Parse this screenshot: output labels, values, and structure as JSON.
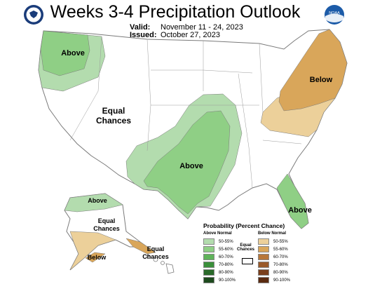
{
  "header": {
    "title": "Weeks 3-4 Precipitation Outlook",
    "valid_label": "Valid:",
    "valid_value": "November 11 - 24, 2023",
    "issued_label": "Issued:",
    "issued_value": "October 27, 2023"
  },
  "logos": {
    "left": "doc-seal-icon",
    "right": "noaa-logo-icon",
    "right_text": "NOAA"
  },
  "map_labels": {
    "northwest": "Above",
    "west_line1": "Equal",
    "west_line2": "Chances",
    "central": "Above",
    "northeast": "Below",
    "florida": "Above",
    "alaska_north": "Above",
    "alaska_mid_line1": "Equal",
    "alaska_mid_line2": "Chances",
    "alaska_south": "Below",
    "hawaii_line1": "Equal",
    "hawaii_line2": "Chances"
  },
  "legend": {
    "title": "Probability (Percent Chance)",
    "above_header": "Above Normal",
    "below_header": "Below Normal",
    "equal_line1": "Equal",
    "equal_line2": "Chances",
    "above": [
      {
        "label": "50-55%",
        "color": "#b3dcae"
      },
      {
        "label": "55-60%",
        "color": "#8fcf85"
      },
      {
        "label": "60-70%",
        "color": "#5fb35a"
      },
      {
        "label": "70-80%",
        "color": "#3a8f3a"
      },
      {
        "label": "80-90%",
        "color": "#2a6a2a"
      },
      {
        "label": "90-100%",
        "color": "#1d4a1d"
      }
    ],
    "below": [
      {
        "label": "50-55%",
        "color": "#ecd09a"
      },
      {
        "label": "55-60%",
        "color": "#d9a65a"
      },
      {
        "label": "60-70%",
        "color": "#b7773a"
      },
      {
        "label": "70-80%",
        "color": "#9a5a2a"
      },
      {
        "label": "80-90%",
        "color": "#7a3f1c"
      },
      {
        "label": "90-100%",
        "color": "#5a2a10"
      }
    ]
  },
  "colors": {
    "above_light": "#b3dcae",
    "above_mid": "#8fcf85",
    "below_light": "#ecd09a",
    "below_mid": "#d9a65a",
    "border": "#7a7a7a"
  }
}
